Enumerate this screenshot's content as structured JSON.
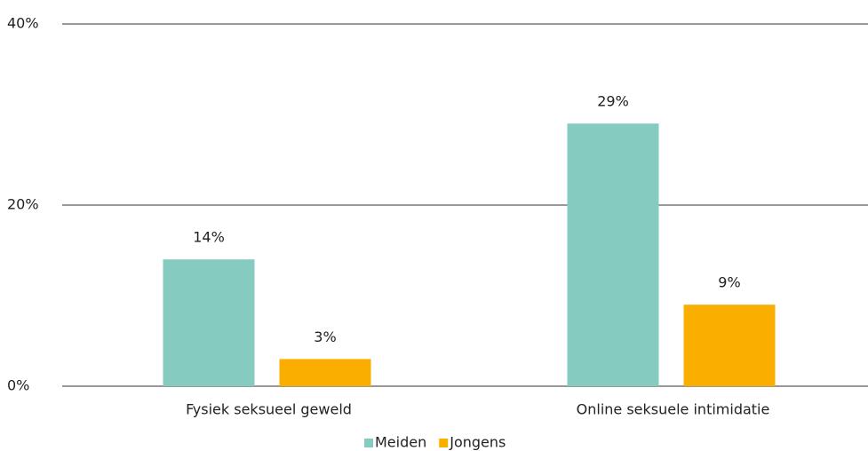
{
  "chart_data": {
    "type": "bar",
    "categories": [
      "Fysiek seksueel geweld",
      "Online seksuele intimidatie"
    ],
    "series": [
      {
        "name": "Meiden",
        "color": "#85cbbf",
        "values": [
          14,
          29
        ],
        "value_labels": [
          "14%",
          "29%"
        ]
      },
      {
        "name": "Jongens",
        "color": "#f9ae00",
        "values": [
          3,
          9
        ],
        "value_labels": [
          "3%",
          "9%"
        ]
      }
    ],
    "ylim": [
      0,
      40
    ],
    "yticks": [
      {
        "value": 0,
        "label": "0%"
      },
      {
        "value": 20,
        "label": "20%"
      },
      {
        "value": 40,
        "label": "40%"
      }
    ],
    "grid": true,
    "legend": "bottom"
  }
}
